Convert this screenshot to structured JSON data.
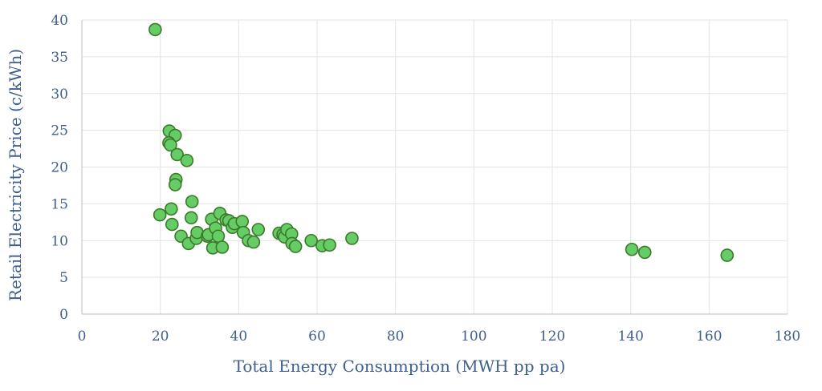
{
  "chart_data": {
    "type": "scatter",
    "xlabel": "Total Energy Consumption (MWH pp pa)",
    "ylabel": "Retail Electricity Price (c/kWh)",
    "xlim": [
      0,
      180
    ],
    "ylim": [
      0,
      40
    ],
    "x_ticks": [
      0,
      20,
      40,
      60,
      80,
      100,
      120,
      140,
      160,
      180
    ],
    "y_ticks": [
      0,
      5,
      10,
      15,
      20,
      25,
      30,
      35,
      40
    ],
    "grid": true,
    "legend": "none",
    "point_color": "#66cc66",
    "point_edge_color": "#3a7a2a",
    "series": [
      {
        "points": [
          [
            18.7,
            38.7
          ],
          [
            22.3,
            24.9
          ],
          [
            23.8,
            24.3
          ],
          [
            22.2,
            23.3
          ],
          [
            22.6,
            23.0
          ],
          [
            24.3,
            21.7
          ],
          [
            26.8,
            20.9
          ],
          [
            24.0,
            18.3
          ],
          [
            23.8,
            17.6
          ],
          [
            28.1,
            15.3
          ],
          [
            19.9,
            13.5
          ],
          [
            22.8,
            14.3
          ],
          [
            23.0,
            12.2
          ],
          [
            27.9,
            13.1
          ],
          [
            25.3,
            10.6
          ],
          [
            27.2,
            9.6
          ],
          [
            29.2,
            10.3
          ],
          [
            29.4,
            11.1
          ],
          [
            32.0,
            10.6
          ],
          [
            32.3,
            10.8
          ],
          [
            33.1,
            12.9
          ],
          [
            33.4,
            9.0
          ],
          [
            34.1,
            11.7
          ],
          [
            34.8,
            10.6
          ],
          [
            35.2,
            13.7
          ],
          [
            35.8,
            9.1
          ],
          [
            36.8,
            12.8
          ],
          [
            37.5,
            12.7
          ],
          [
            38.4,
            11.8
          ],
          [
            38.9,
            12.3
          ],
          [
            40.9,
            12.6
          ],
          [
            41.2,
            11.1
          ],
          [
            42.5,
            10.0
          ],
          [
            43.8,
            9.8
          ],
          [
            45.0,
            11.5
          ],
          [
            50.3,
            11.0
          ],
          [
            51.3,
            10.8
          ],
          [
            51.7,
            10.5
          ],
          [
            52.3,
            11.5
          ],
          [
            53.5,
            10.9
          ],
          [
            53.6,
            9.6
          ],
          [
            54.5,
            9.2
          ],
          [
            58.5,
            10.0
          ],
          [
            61.3,
            9.3
          ],
          [
            63.2,
            9.4
          ],
          [
            68.9,
            10.3
          ],
          [
            140.3,
            8.8
          ],
          [
            143.6,
            8.4
          ],
          [
            164.6,
            8.0
          ]
        ]
      }
    ]
  }
}
